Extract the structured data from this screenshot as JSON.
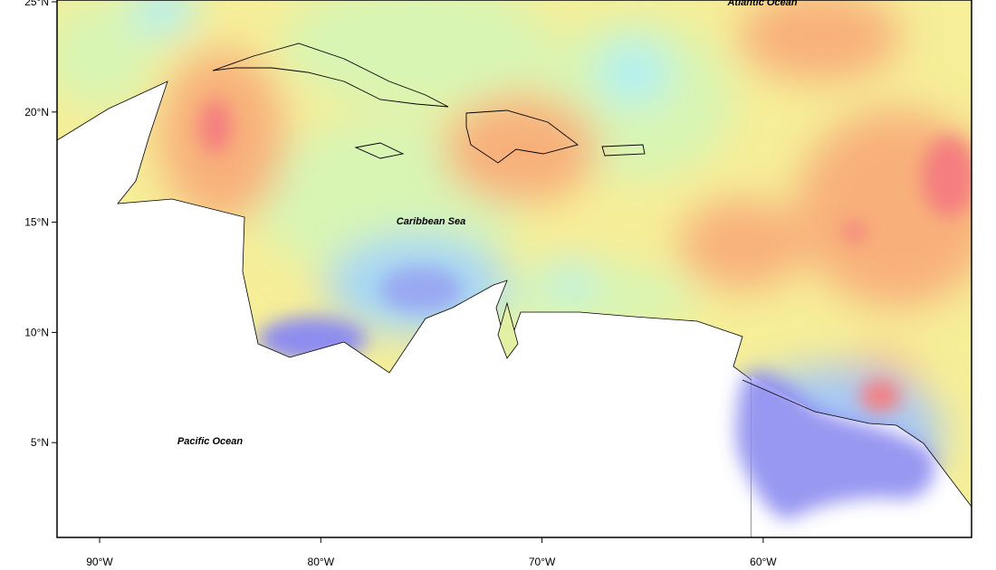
{
  "map": {
    "labels": {
      "atlantic": "Atlantic Ocean",
      "caribbean": "Caribbean Sea",
      "pacific": "Pacific Ocean"
    },
    "lat_ticks": [
      "25°N",
      "20°N",
      "15°N",
      "10°N",
      "5°N"
    ],
    "lon_ticks": [
      "90°W",
      "80°W",
      "70°W",
      "60°W"
    ]
  }
}
